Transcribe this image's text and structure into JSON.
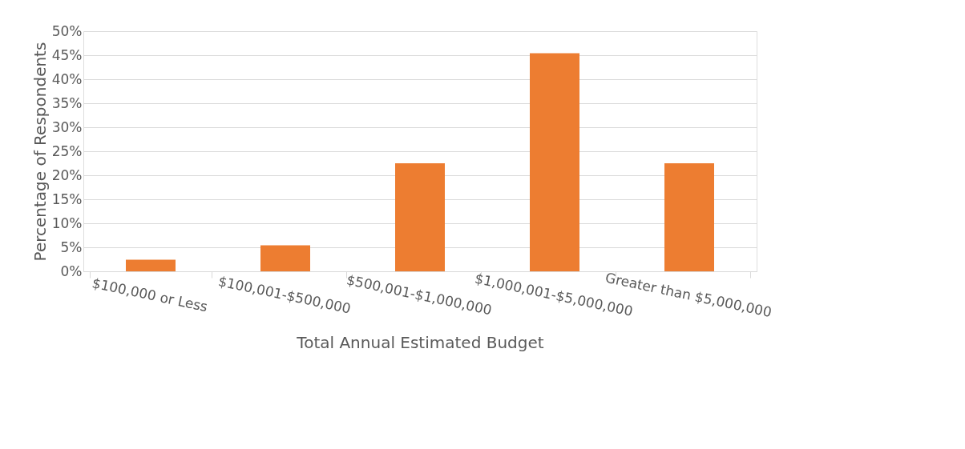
{
  "chart_data": {
    "type": "bar",
    "categories": [
      "$100,000 or Less",
      "$100,001-$500,000",
      "$500,001-$1,000,000",
      "$1,000,001-$5,000,000",
      "Greater than $5,000,000"
    ],
    "values": [
      2.4,
      5.4,
      22.5,
      45.4,
      22.5
    ],
    "color": "#ed7d31",
    "xlabel": "Total Annual Estimated Budget",
    "ylabel": "Percentage of Respondents",
    "ylim": [
      0,
      50
    ],
    "yticks": [
      {
        "value": 0,
        "label": "0%"
      },
      {
        "value": 5,
        "label": "5%"
      },
      {
        "value": 10,
        "label": "10%"
      },
      {
        "value": 15,
        "label": "15%"
      },
      {
        "value": 20,
        "label": "20%"
      },
      {
        "value": 25,
        "label": "25%"
      },
      {
        "value": 30,
        "label": "30%"
      },
      {
        "value": 35,
        "label": "35%"
      },
      {
        "value": 40,
        "label": "40%"
      },
      {
        "value": 45,
        "label": "45%"
      },
      {
        "value": 50,
        "label": "50%"
      }
    ],
    "grid": "y"
  }
}
